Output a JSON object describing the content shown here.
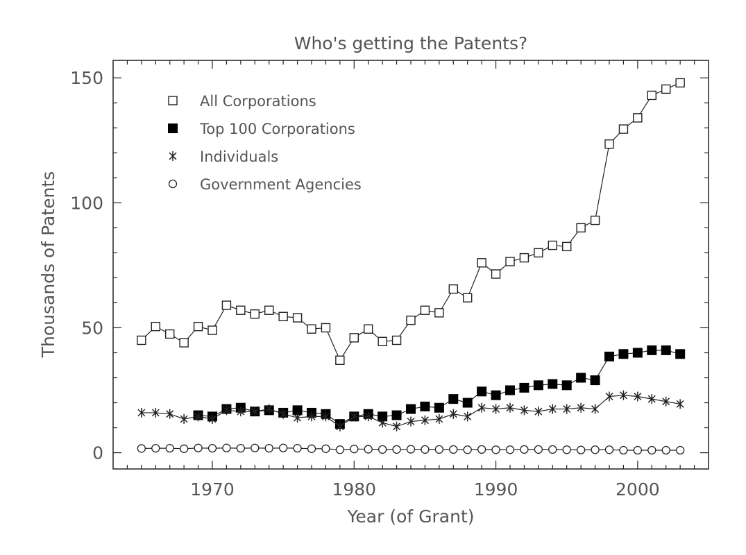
{
  "chart_data": {
    "type": "scatter",
    "title": "Who's getting the Patents?",
    "xlabel": "Year (of Grant)",
    "ylabel": "Thousands of Patents",
    "xlim": [
      1963,
      2005
    ],
    "ylim": [
      -6.5,
      157
    ],
    "xticks": [
      1970,
      1980,
      1990,
      2000
    ],
    "yticks": [
      0,
      50,
      100,
      150
    ],
    "legend_position": "top-left",
    "grid": false,
    "x": [
      1965,
      1966,
      1967,
      1968,
      1969,
      1970,
      1971,
      1972,
      1973,
      1974,
      1975,
      1976,
      1977,
      1978,
      1979,
      1980,
      1981,
      1982,
      1983,
      1984,
      1985,
      1986,
      1987,
      1988,
      1989,
      1990,
      1991,
      1992,
      1993,
      1994,
      1995,
      1996,
      1997,
      1998,
      1999,
      2000,
      2001,
      2002,
      2003
    ],
    "series": [
      {
        "name": "All Corporations",
        "marker": "open-square",
        "x": [
          1965,
          1966,
          1967,
          1968,
          1969,
          1970,
          1971,
          1972,
          1973,
          1974,
          1975,
          1976,
          1977,
          1978,
          1979,
          1980,
          1981,
          1982,
          1983,
          1984,
          1985,
          1986,
          1987,
          1988,
          1989,
          1990,
          1991,
          1992,
          1993,
          1994,
          1995,
          1996,
          1997,
          1998,
          1999,
          2000,
          2001,
          2002,
          2003
        ],
        "values": [
          45,
          50.5,
          47.5,
          44,
          50.5,
          49,
          59,
          57,
          55.5,
          57,
          54.5,
          54,
          49.5,
          50,
          37,
          46,
          49.5,
          44.5,
          45,
          53,
          57,
          56,
          65.5,
          62,
          76,
          71.5,
          76.5,
          78,
          80,
          83,
          82.5,
          90,
          93,
          123.5,
          129.5,
          134,
          143,
          145.5,
          148
        ]
      },
      {
        "name": "Top 100 Corporations",
        "marker": "filled-square",
        "x": [
          1969,
          1970,
          1971,
          1972,
          1973,
          1974,
          1975,
          1976,
          1977,
          1978,
          1979,
          1980,
          1981,
          1982,
          1983,
          1984,
          1985,
          1986,
          1987,
          1988,
          1989,
          1990,
          1991,
          1992,
          1993,
          1994,
          1995,
          1996,
          1997,
          1998,
          1999,
          2000,
          2001,
          2002,
          2003
        ],
        "values": [
          15,
          14.5,
          17.5,
          18,
          16.5,
          17,
          16,
          17,
          16,
          15.5,
          11.5,
          14.5,
          15.5,
          14.5,
          15,
          17.5,
          18.5,
          18,
          21.5,
          20,
          24.5,
          23,
          25,
          26,
          27,
          27.5,
          27,
          30,
          29,
          38.5,
          39.5,
          40,
          41,
          41,
          39.5
        ]
      },
      {
        "name": "Individuals",
        "marker": "asterisk",
        "x": [
          1965,
          1966,
          1967,
          1968,
          1969,
          1970,
          1971,
          1972,
          1973,
          1974,
          1975,
          1976,
          1977,
          1978,
          1979,
          1980,
          1981,
          1982,
          1983,
          1984,
          1985,
          1986,
          1987,
          1988,
          1989,
          1990,
          1991,
          1992,
          1993,
          1994,
          1995,
          1996,
          1997,
          1998,
          1999,
          2000,
          2001,
          2002,
          2003
        ],
        "values": [
          16,
          16,
          15.5,
          13.5,
          14.5,
          13.5,
          17,
          16.5,
          16.5,
          17.5,
          15.5,
          14,
          14.5,
          14.5,
          10.5,
          14.5,
          14.5,
          12,
          10.5,
          12.5,
          13,
          13.5,
          15.5,
          14.5,
          18,
          17.5,
          18,
          17,
          16.5,
          17.5,
          17.5,
          18,
          17.5,
          22.5,
          23,
          22.5,
          21.5,
          20.5,
          19.5
        ]
      },
      {
        "name": "Government Agencies",
        "marker": "open-circle",
        "x": [
          1965,
          1966,
          1967,
          1968,
          1969,
          1970,
          1971,
          1972,
          1973,
          1974,
          1975,
          1976,
          1977,
          1978,
          1979,
          1980,
          1981,
          1982,
          1983,
          1984,
          1985,
          1986,
          1987,
          1988,
          1989,
          1990,
          1991,
          1992,
          1993,
          1994,
          1995,
          1996,
          1997,
          1998,
          1999,
          2000,
          2001,
          2002,
          2003
        ],
        "values": [
          1.7,
          1.8,
          1.8,
          1.6,
          1.9,
          1.8,
          1.9,
          1.8,
          1.9,
          1.8,
          1.9,
          1.8,
          1.6,
          1.6,
          1.2,
          1.5,
          1.4,
          1.3,
          1.3,
          1.4,
          1.3,
          1.3,
          1.3,
          1.2,
          1.3,
          1.2,
          1.2,
          1.3,
          1.3,
          1.3,
          1.2,
          1.1,
          1.2,
          1.2,
          1.0,
          1.0,
          1.0,
          1.0,
          1.0
        ]
      }
    ]
  }
}
